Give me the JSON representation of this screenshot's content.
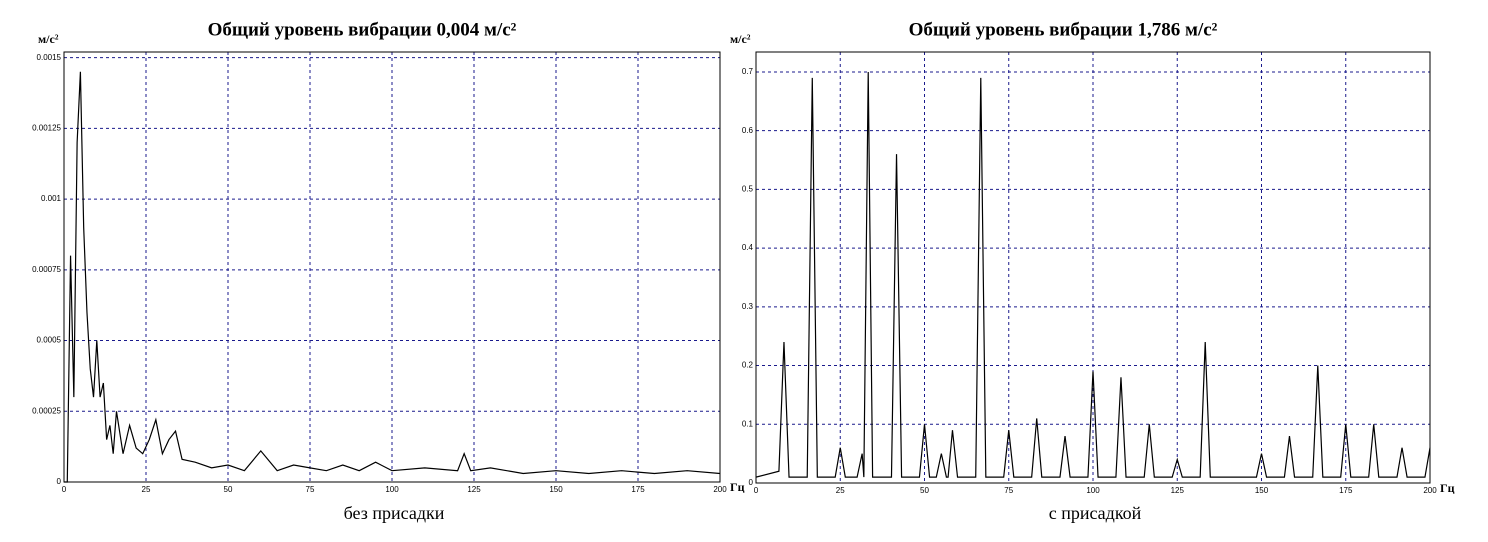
{
  "chart_data": [
    {
      "type": "line",
      "title": "Общий уровень вибрации 0,004 м/с²",
      "ylabel": "м/с²",
      "xlabel": "Гц",
      "caption": "без присадки",
      "color": "#000000",
      "grid": true,
      "xlim": [
        0,
        200
      ],
      "xticks": [
        0,
        25,
        50,
        75,
        100,
        125,
        150,
        175,
        200
      ],
      "ylim": [
        0,
        0.00152
      ],
      "yticks": [
        0,
        0.00025,
        0.0005,
        0.00075,
        0.001,
        0.00125,
        0.0015
      ],
      "x": [
        0,
        1,
        2,
        3,
        4,
        5,
        6,
        7,
        8,
        9,
        10,
        11,
        12,
        13,
        14,
        15,
        16,
        18,
        20,
        22,
        24,
        26,
        28,
        30,
        32,
        34,
        36,
        40,
        45,
        50,
        55,
        60,
        65,
        70,
        75,
        80,
        85,
        90,
        95,
        100,
        110,
        120,
        122,
        124,
        130,
        140,
        150,
        160,
        170,
        180,
        190,
        200
      ],
      "values": [
        0,
        0,
        0.0008,
        0.0003,
        0.0012,
        0.00145,
        0.0009,
        0.0006,
        0.0004,
        0.0003,
        0.0005,
        0.0003,
        0.00035,
        0.00015,
        0.0002,
        0.0001,
        0.00025,
        0.0001,
        0.0002,
        0.00012,
        0.0001,
        0.00015,
        0.00022,
        0.0001,
        0.00015,
        0.00018,
        8e-05,
        7e-05,
        5e-05,
        6e-05,
        4e-05,
        0.00011,
        4e-05,
        6e-05,
        5e-05,
        4e-05,
        6e-05,
        4e-05,
        7e-05,
        4e-05,
        5e-05,
        4e-05,
        0.0001,
        4e-05,
        5e-05,
        3e-05,
        4e-05,
        3e-05,
        4e-05,
        3e-05,
        4e-05,
        3e-05
      ]
    },
    {
      "type": "line",
      "title": "Общий уровень вибрации 1,786 м/с²",
      "ylabel": "м/с²",
      "xlabel": "Гц",
      "caption": "с присадкой",
      "color": "#000000",
      "grid": true,
      "xlim": [
        0,
        200
      ],
      "xticks": [
        0,
        25,
        50,
        75,
        100,
        125,
        150,
        175,
        200
      ],
      "ylim": [
        0,
        0.734
      ],
      "yticks": [
        0,
        0.1,
        0.2,
        0.3,
        0.4,
        0.5,
        0.6,
        0.7
      ],
      "x": [
        0,
        6.8,
        8.3,
        9.8,
        15.2,
        16.7,
        18.2,
        23.5,
        25,
        26.5,
        30,
        31.5,
        32,
        33.3,
        34.6,
        40.2,
        41.7,
        43.2,
        48.5,
        50,
        51.5,
        53.5,
        55,
        56.5,
        57,
        58.3,
        59.8,
        65.2,
        66.7,
        68.2,
        73.5,
        75,
        76.5,
        81.8,
        83.3,
        84.8,
        90.2,
        91.7,
        93.2,
        98.5,
        100,
        101.5,
        106.8,
        108.3,
        109.8,
        115.2,
        116.7,
        118.2,
        123.5,
        125,
        126.5,
        131.8,
        133.3,
        134.8,
        148.5,
        150,
        151.5,
        156.8,
        158.3,
        159.8,
        165.2,
        166.7,
        168.2,
        173.5,
        175,
        176.5,
        181.8,
        183.3,
        184.8,
        190.2,
        191.7,
        193.2,
        198.5,
        200
      ],
      "values": [
        0.01,
        0.02,
        0.24,
        0.01,
        0.01,
        0.69,
        0.01,
        0.01,
        0.06,
        0.01,
        0.01,
        0.05,
        0.01,
        0.7,
        0.01,
        0.01,
        0.56,
        0.01,
        0.01,
        0.1,
        0.01,
        0.01,
        0.05,
        0.01,
        0.01,
        0.09,
        0.01,
        0.01,
        0.69,
        0.01,
        0.01,
        0.09,
        0.01,
        0.01,
        0.11,
        0.01,
        0.01,
        0.08,
        0.01,
        0.01,
        0.19,
        0.01,
        0.01,
        0.18,
        0.01,
        0.01,
        0.1,
        0.01,
        0.01,
        0.04,
        0.01,
        0.01,
        0.24,
        0.01,
        0.01,
        0.05,
        0.01,
        0.01,
        0.08,
        0.01,
        0.01,
        0.2,
        0.01,
        0.01,
        0.1,
        0.01,
        0.01,
        0.1,
        0.01,
        0.01,
        0.06,
        0.01,
        0.01,
        0.06
      ]
    }
  ]
}
